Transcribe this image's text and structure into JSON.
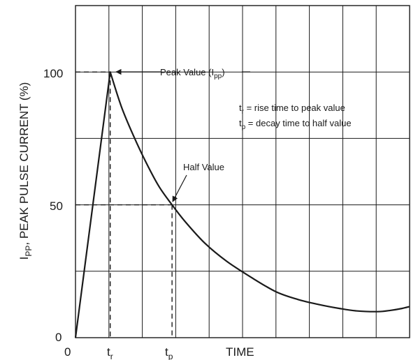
{
  "chart_data": {
    "type": "line",
    "ylabel": {
      "main": "I",
      "sub": "PP",
      "rest": ", PEAK PULSE CURRENT (%)"
    },
    "xlabel": "TIME",
    "y_ticks": [
      "0",
      "50",
      "100"
    ],
    "x_ticks": [
      {
        "id": "zero",
        "main": "0",
        "sub": ""
      },
      {
        "id": "tr",
        "main": "t",
        "sub": "r"
      },
      {
        "id": "tp",
        "main": "t",
        "sub": "p"
      }
    ],
    "ylim": [
      0,
      125
    ],
    "grid": true,
    "series": [
      {
        "x": [
          0,
          1.0,
          1.32,
          1.67,
          2.03,
          2.4,
          2.78,
          3.17,
          3.73,
          4.35,
          5.06,
          5.77,
          6.4,
          7.0,
          7.6,
          8.08,
          8.7,
          9.08,
          9.4,
          9.62
        ],
        "y": [
          0,
          100,
          87,
          76,
          66,
          57,
          50,
          43.5,
          35.5,
          28.8,
          22.7,
          17.3,
          14.4,
          12.5,
          11.0,
          10.1,
          9.8,
          10.3,
          11.0,
          11.7
        ]
      }
    ],
    "annotations": {
      "peak": {
        "main": "Peak Value (I",
        "sub": "pp",
        "close": ")"
      },
      "half": "Half Value",
      "legend_tr": {
        "main": "t",
        "sub": "r",
        "rest": " = rise time to peak value"
      },
      "legend_tp": {
        "main": "t",
        "sub": "p",
        "rest": " = decay time to half value"
      }
    }
  }
}
